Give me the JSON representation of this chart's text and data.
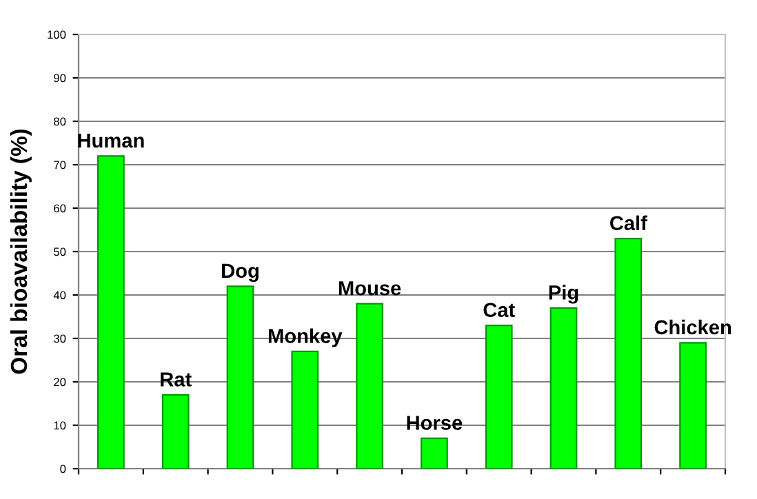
{
  "chart_data": {
    "type": "bar",
    "ylabel": "Oral bioavailability (%)",
    "categories": [
      "Human",
      "Rat",
      "Dog",
      "Monkey",
      "Mouse",
      "Horse",
      "Cat",
      "Pig",
      "Calf",
      "Chicken"
    ],
    "values": [
      72,
      17,
      42,
      27,
      38,
      7,
      33,
      37,
      53,
      29
    ],
    "color": "#00ff00",
    "ylim": [
      0,
      100
    ],
    "yticks": [
      0,
      10,
      20,
      30,
      40,
      50,
      60,
      70,
      80,
      90,
      100
    ],
    "grid": "y",
    "tick_labels": "y"
  }
}
